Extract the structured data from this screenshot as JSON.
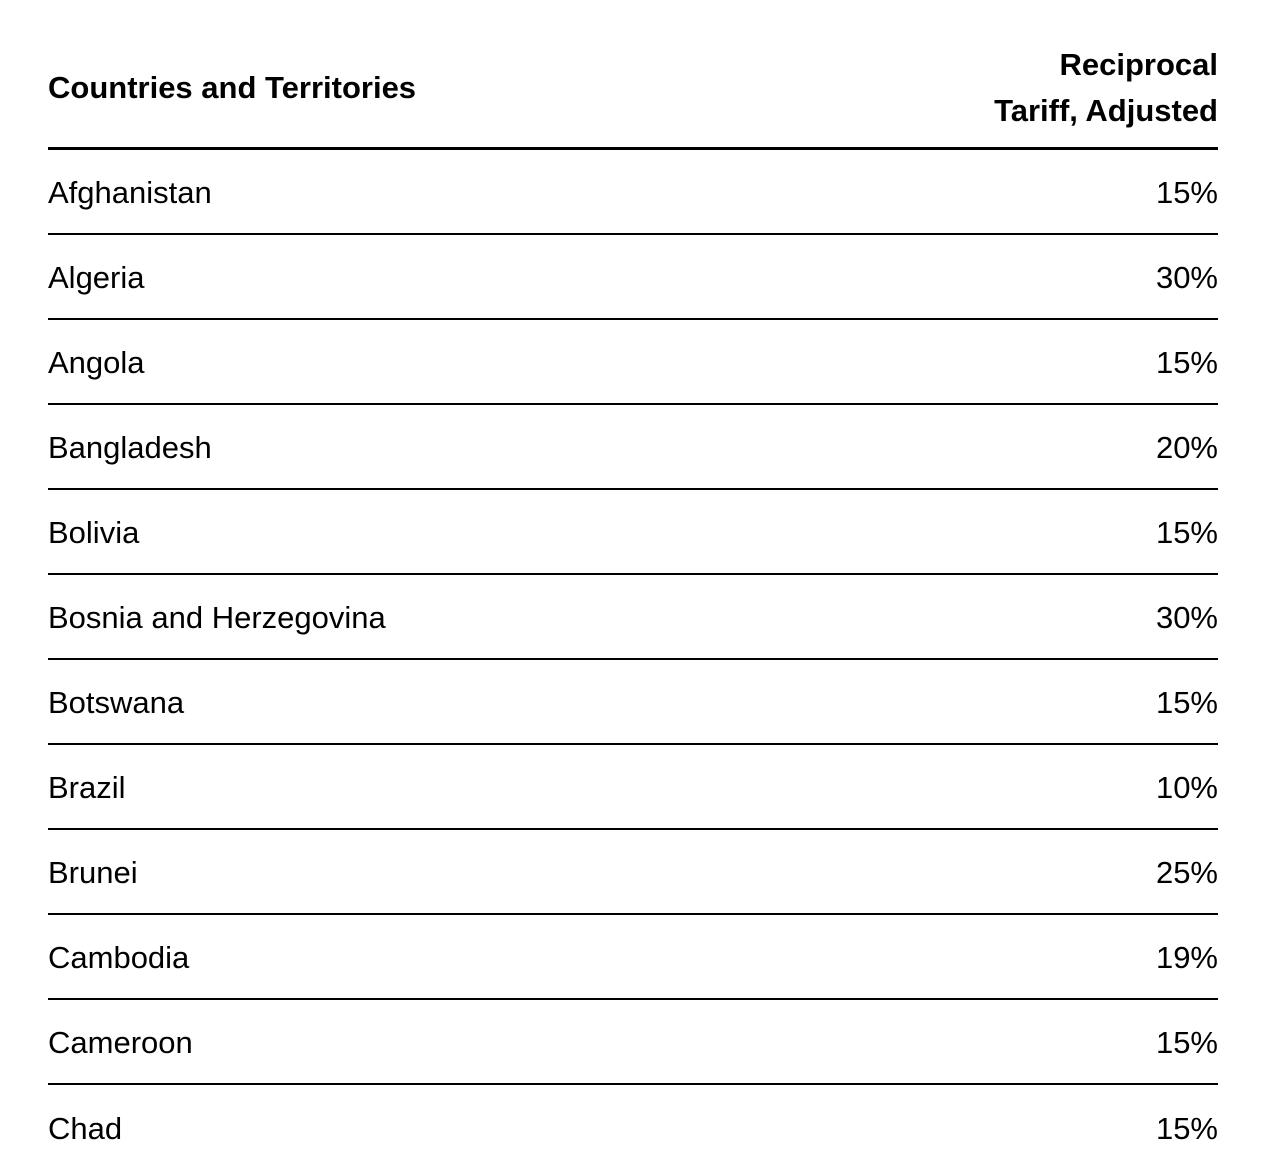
{
  "colors": {
    "background": "#ffffff",
    "text": "#000000",
    "rule": "#000000"
  },
  "table": {
    "header": {
      "col1": "Countries and Territories",
      "col2_line1": "Reciprocal",
      "col2_line2": "Tariff, Adjusted"
    },
    "rows": [
      {
        "country": "Afghanistan",
        "tariff": "15%"
      },
      {
        "country": "Algeria",
        "tariff": "30%"
      },
      {
        "country": "Angola",
        "tariff": "15%"
      },
      {
        "country": "Bangladesh",
        "tariff": "20%"
      },
      {
        "country": "Bolivia",
        "tariff": "15%"
      },
      {
        "country": "Bosnia and Herzegovina",
        "tariff": "30%"
      },
      {
        "country": "Botswana",
        "tariff": "15%"
      },
      {
        "country": "Brazil",
        "tariff": "10%"
      },
      {
        "country": "Brunei",
        "tariff": "25%"
      },
      {
        "country": "Cambodia",
        "tariff": "19%"
      },
      {
        "country": "Cameroon",
        "tariff": "15%"
      },
      {
        "country": "Chad",
        "tariff": "15%"
      }
    ]
  },
  "chart_data": {
    "type": "table",
    "title": "",
    "columns": [
      "Countries and Territories",
      "Reciprocal Tariff, Adjusted"
    ],
    "categories": [
      "Afghanistan",
      "Algeria",
      "Angola",
      "Bangladesh",
      "Bolivia",
      "Bosnia and Herzegovina",
      "Botswana",
      "Brazil",
      "Brunei",
      "Cambodia",
      "Cameroon",
      "Chad"
    ],
    "values": [
      15,
      30,
      15,
      20,
      15,
      30,
      15,
      10,
      25,
      19,
      15,
      15
    ],
    "value_unit": "%"
  }
}
